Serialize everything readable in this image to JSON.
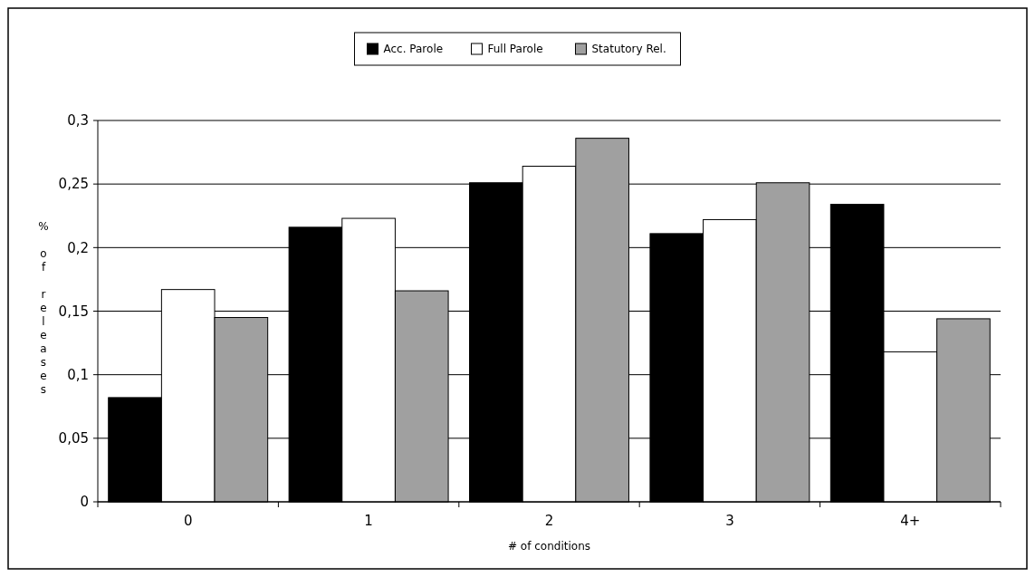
{
  "chart_data": {
    "type": "bar",
    "xlabel": "# of conditions",
    "ylabel": "% of releases",
    "categories": [
      "0",
      "1",
      "2",
      "3",
      "4+"
    ],
    "series": [
      {
        "name": "Acc. Parole",
        "color": "#000000",
        "values": [
          0.082,
          0.216,
          0.251,
          0.211,
          0.234
        ]
      },
      {
        "name": "Full Parole",
        "color": "#ffffff",
        "values": [
          0.167,
          0.223,
          0.264,
          0.222,
          0.118
        ]
      },
      {
        "name": "Statutory Rel.",
        "color": "#a0a0a0",
        "values": [
          0.145,
          0.166,
          0.286,
          0.251,
          0.144
        ]
      }
    ],
    "ylim": [
      0,
      0.3
    ],
    "yticks": [
      {
        "value": 0,
        "label": "0"
      },
      {
        "value": 0.05,
        "label": "0,05"
      },
      {
        "value": 0.1,
        "label": "0,1"
      },
      {
        "value": 0.15,
        "label": "0,15"
      },
      {
        "value": 0.2,
        "label": "0,2"
      },
      {
        "value": 0.25,
        "label": "0,25"
      },
      {
        "value": 0.3,
        "label": "0,3"
      }
    ],
    "grid": "y",
    "legend": "top"
  }
}
